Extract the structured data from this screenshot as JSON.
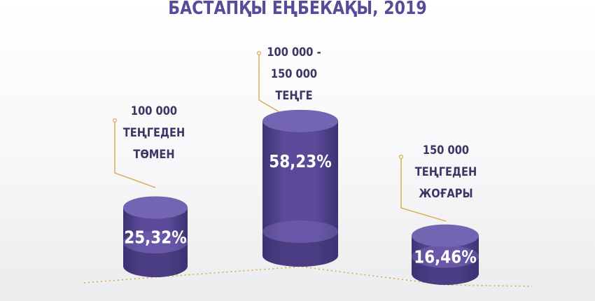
{
  "title": "БАСТАПҚЫ ЕҢБЕКАҚЫ, 2019",
  "colors": {
    "title": "#5b4a99",
    "cylinder_body": "#5b4a99",
    "cylinder_dark": "#3d3372",
    "cylinder_top": "#7465b3",
    "label_text": "#3d3564",
    "leader_line": "#d7a948"
  },
  "chart_data": {
    "type": "bar",
    "title": "БАСТАПҚЫ ЕҢБЕКАҚЫ, 2019",
    "categories": [
      "100 000 ТЕҢГЕДЕН ТӨМЕН",
      "100 000 - 150 000 ТЕҢГЕ",
      "150 000 ТЕҢГЕДЕН ЖОҒАРЫ"
    ],
    "values": [
      25.32,
      58.23,
      16.46
    ],
    "value_labels": [
      "25,32%",
      "58,23%",
      "16,46%"
    ],
    "unit": "%",
    "category_label_lines": [
      [
        "100 000",
        "ТЕҢГЕДЕН",
        "ТӨМЕН"
      ],
      [
        "100 000 -",
        "150 000",
        "ТЕҢГЕ"
      ],
      [
        "150 000",
        "ТЕҢГЕДЕН",
        "ЖОҒАРЫ"
      ]
    ]
  }
}
